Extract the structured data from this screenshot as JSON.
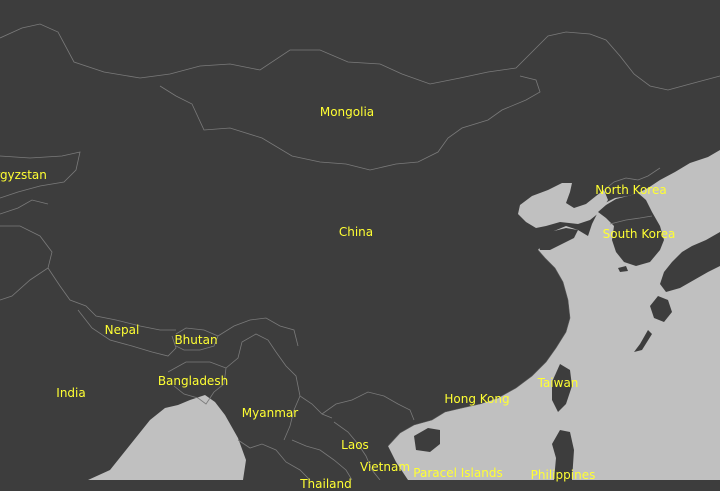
{
  "style": {
    "land_color": "#3d3d3d",
    "water_color": "#c0c0c0",
    "border_color": "#7a7a7a",
    "label_color": "#ffff33"
  },
  "labels": {
    "mongolia": "Mongolia",
    "kyrgyzstan": "Kyrgyzstan",
    "china": "China",
    "north_korea": "North Korea",
    "south_korea": "South Korea",
    "nepal": "Nepal",
    "bhutan": "Bhutan",
    "bangladesh": "Bangladesh",
    "india": "India",
    "myanmar": "Myanmar",
    "taiwan": "Taiwan",
    "hong_kong": "Hong Kong",
    "laos": "Laos",
    "vietnam": "Vietnam",
    "paracel_islands": "Paracel Islands",
    "philippines": "Philippines",
    "thailand": "Thailand"
  }
}
